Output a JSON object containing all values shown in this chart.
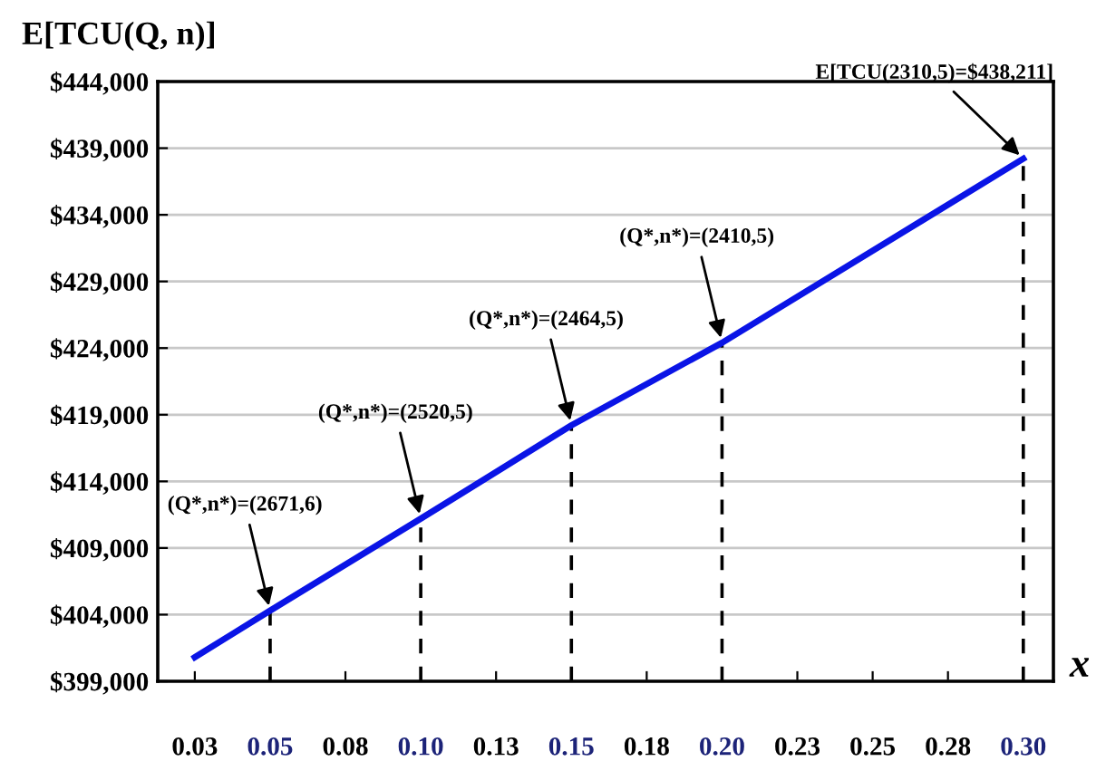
{
  "chart_data": {
    "type": "line",
    "ylabel": "E[TCU(Q, n)]",
    "xlabel": "x",
    "x": [
      0.025,
      0.05,
      0.1,
      0.15,
      0.2,
      0.3
    ],
    "series": [
      {
        "color": "#0a14e6",
        "values": [
          400800,
          404300,
          411200,
          418200,
          424400,
          438211
        ]
      }
    ],
    "ref_lines": [
      {
        "axis": "x",
        "value": 0.05,
        "color": "#000000",
        "line_style": "dashed"
      },
      {
        "axis": "x",
        "value": 0.1,
        "color": "#000000",
        "line_style": "dashed"
      },
      {
        "axis": "x",
        "value": 0.15,
        "color": "#000000",
        "line_style": "dashed"
      },
      {
        "axis": "x",
        "value": 0.2,
        "color": "#000000",
        "line_style": "dashed"
      },
      {
        "axis": "x",
        "value": 0.3,
        "color": "#000000",
        "line_style": "dashed"
      }
    ],
    "xlim": [
      0.0127,
      0.31
    ],
    "xticks": [
      {
        "value": 0.025,
        "label": "0.03"
      },
      0.05,
      {
        "value": 0.075,
        "label": "0.08"
      },
      {
        "value": 0.1,
        "label": "0.10"
      },
      {
        "value": 0.125,
        "label": "0.13"
      },
      0.15,
      {
        "value": 0.175,
        "label": "0.18"
      },
      {
        "value": 0.2,
        "label": "0.20"
      },
      {
        "value": 0.225,
        "label": "0.23"
      },
      0.25,
      {
        "value": 0.275,
        "label": "0.28"
      },
      {
        "value": 0.3,
        "label": "0.30"
      }
    ],
    "ylim": [
      399000,
      444000
    ],
    "yticks": [
      {
        "value": 399000,
        "label": "$399,000"
      },
      {
        "value": 404000,
        "label": "$404,000"
      },
      {
        "value": 409000,
        "label": "$409,000"
      },
      {
        "value": 414000,
        "label": "$414,000"
      },
      {
        "value": 419000,
        "label": "$419,000"
      },
      {
        "value": 424000,
        "label": "$424,000"
      },
      {
        "value": 429000,
        "label": "$429,000"
      },
      {
        "value": 434000,
        "label": "$434,000"
      },
      {
        "value": 439000,
        "label": "$439,000"
      },
      {
        "value": 444000,
        "label": "$444,000"
      }
    ],
    "grid": "y",
    "marker": "none",
    "line_style": "solid",
    "annotations": [
      {
        "text": "(Q*,n*)=(2671,6)",
        "x": 0.05,
        "y": 404300
      },
      {
        "text": "(Q*,n*)=(2520,5)",
        "x": 0.1,
        "y": 411200
      },
      {
        "text": "(Q*,n*)=(2464,5)",
        "x": 0.15,
        "y": 418200
      },
      {
        "text": "(Q*,n*)=(2410,5)",
        "x": 0.2,
        "y": 424400
      },
      {
        "text": "E[TCU(2310,5)=$438,211]",
        "x": 0.3,
        "y": 438211
      }
    ]
  }
}
